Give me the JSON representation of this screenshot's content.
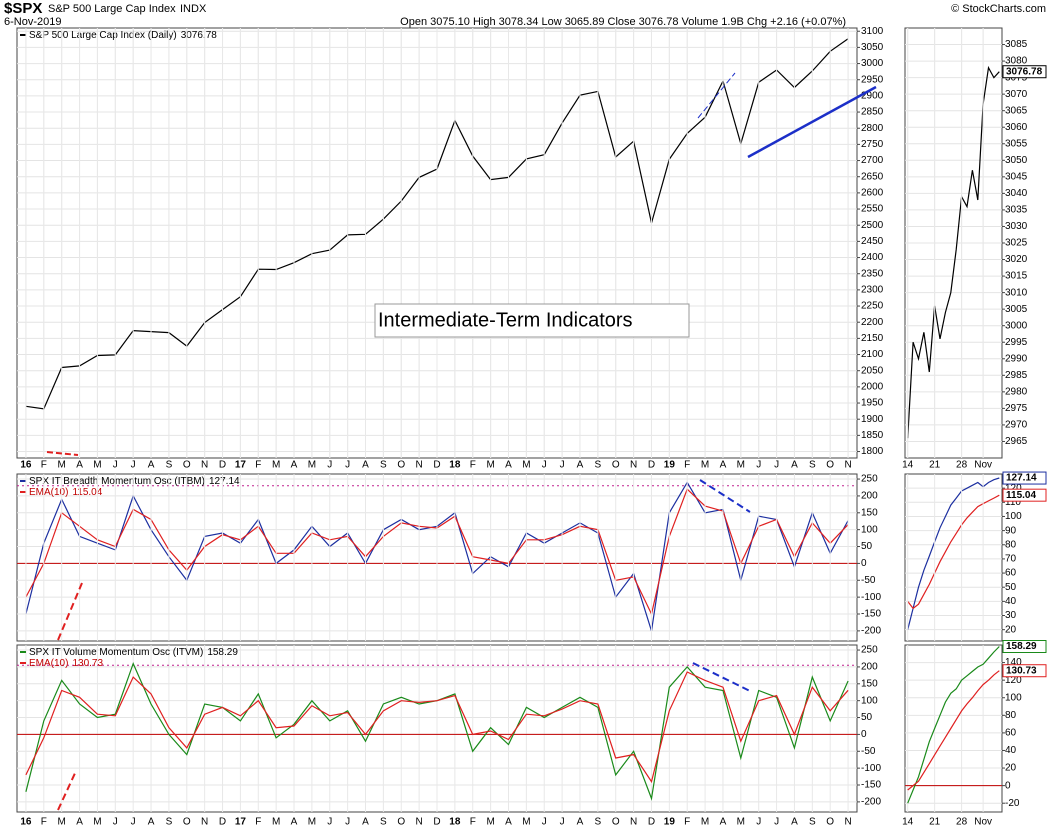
{
  "header": {
    "symbol": "$SPX",
    "name": "S&P 500 Large Cap Index",
    "exchange": "INDX",
    "date": "6-Nov-2019",
    "quote": "Open 3075.10   High 3078.34   Low 3065.89   Close 3076.78   Volume 1.9B   Chg +2.16 (+0.07%)",
    "copyright": "© StockCharts.com",
    "annotation": "Intermediate-Term Indicators"
  },
  "chart_data": [
    {
      "type": "line",
      "categories": [
        "16",
        "F",
        "M",
        "A",
        "M",
        "J",
        "J",
        "A",
        "S",
        "O",
        "N",
        "D",
        "17",
        "F",
        "M",
        "A",
        "M",
        "J",
        "J",
        "A",
        "S",
        "O",
        "N",
        "D",
        "18",
        "F",
        "M",
        "A",
        "M",
        "J",
        "J",
        "A",
        "S",
        "O",
        "N",
        "D",
        "19",
        "F",
        "M",
        "A",
        "M",
        "J",
        "J",
        "A",
        "S",
        "O",
        "N"
      ],
      "series": [
        {
          "name": "S&P 500 Large Cap Index (Daily)",
          "color": "#000000",
          "values": [
            1940,
            1932,
            2060,
            2065,
            2097,
            2099,
            2174,
            2171,
            2168,
            2126,
            2199,
            2239,
            2279,
            2364,
            2363,
            2384,
            2412,
            2423,
            2470,
            2472,
            2519,
            2575,
            2648,
            2674,
            2824,
            2714,
            2641,
            2648,
            2705,
            2718,
            2816,
            2902,
            2914,
            2711,
            2760,
            2507,
            2704,
            2784,
            2834,
            2946,
            2752,
            2942,
            2980,
            2926,
            2977,
            3038,
            3076.78
          ]
        }
      ],
      "ylim": [
        1780,
        3110
      ],
      "yticks": [
        1800,
        1850,
        1900,
        1950,
        2000,
        2050,
        2100,
        2150,
        2200,
        2250,
        2300,
        2350,
        2400,
        2450,
        2500,
        2550,
        2600,
        2650,
        2700,
        2750,
        2800,
        2850,
        2900,
        2950,
        3000,
        3050,
        3100
      ],
      "grid": true
    },
    {
      "type": "line",
      "series": [
        {
          "name": "SPX IT Breadth Momentum Osc (ITBM)",
          "color": "#1c2fa0",
          "values": [
            -150,
            60,
            190,
            80,
            60,
            40,
            200,
            100,
            20,
            -50,
            80,
            90,
            60,
            130,
            0,
            40,
            110,
            50,
            90,
            0,
            100,
            130,
            100,
            110,
            150,
            -30,
            20,
            -10,
            90,
            60,
            90,
            120,
            90,
            -100,
            -30,
            -200,
            150,
            240,
            150,
            160,
            -50,
            140,
            130,
            -10,
            150,
            30,
            127.14
          ]
        },
        {
          "name": "EMA(10)",
          "color": "#e02020",
          "values": [
            -100,
            0,
            150,
            110,
            70,
            50,
            160,
            130,
            40,
            -20,
            50,
            85,
            70,
            110,
            30,
            30,
            90,
            70,
            80,
            20,
            80,
            120,
            110,
            105,
            140,
            20,
            10,
            0,
            70,
            70,
            85,
            110,
            100,
            -50,
            -40,
            -150,
            80,
            220,
            170,
            155,
            0,
            110,
            130,
            20,
            120,
            60,
            115.04
          ]
        }
      ],
      "ylim": [
        -230,
        265
      ],
      "yticks": [
        -200,
        -150,
        -100,
        -50,
        0,
        50,
        100,
        150,
        200,
        250
      ],
      "grid": true,
      "hlines": [
        {
          "value": 0,
          "color": "#c00000",
          "style": "solid"
        },
        {
          "value": 230,
          "color": "#c0208f",
          "style": "dotted"
        }
      ]
    },
    {
      "type": "line",
      "categories": [
        "16",
        "F",
        "M",
        "A",
        "M",
        "J",
        "J",
        "A",
        "S",
        "O",
        "N",
        "D",
        "17",
        "F",
        "M",
        "A",
        "M",
        "J",
        "J",
        "A",
        "S",
        "O",
        "N",
        "D",
        "18",
        "F",
        "M",
        "A",
        "M",
        "J",
        "J",
        "A",
        "S",
        "O",
        "N",
        "D",
        "19",
        "F",
        "M",
        "A",
        "M",
        "J",
        "J",
        "A",
        "S",
        "O",
        "N"
      ],
      "series": [
        {
          "name": "SPX IT Volume Momentum Osc (ITVM)",
          "color": "#1a8a1a",
          "values": [
            -170,
            40,
            160,
            90,
            50,
            60,
            210,
            90,
            0,
            -60,
            90,
            80,
            40,
            120,
            -10,
            30,
            100,
            40,
            70,
            -20,
            90,
            110,
            90,
            100,
            120,
            -50,
            20,
            -30,
            80,
            50,
            80,
            110,
            80,
            -120,
            -50,
            -190,
            140,
            200,
            140,
            130,
            -70,
            130,
            110,
            -40,
            170,
            40,
            158.29
          ]
        },
        {
          "name": "EMA(10)",
          "color": "#e02020",
          "values": [
            -120,
            -10,
            130,
            110,
            60,
            55,
            170,
            120,
            20,
            -40,
            60,
            80,
            55,
            100,
            20,
            25,
            85,
            55,
            65,
            0,
            70,
            100,
            95,
            100,
            115,
            0,
            10,
            -15,
            60,
            55,
            75,
            100,
            90,
            -70,
            -60,
            -140,
            70,
            185,
            160,
            140,
            -20,
            100,
            115,
            0,
            140,
            70,
            130.73
          ]
        }
      ],
      "ylim": [
        -230,
        265
      ],
      "yticks": [
        -200,
        -150,
        -100,
        -50,
        0,
        50,
        100,
        150,
        200,
        250
      ],
      "grid": true,
      "hlines": [
        {
          "value": 0,
          "color": "#c00000",
          "style": "solid"
        },
        {
          "value": 205,
          "color": "#c0208f",
          "style": "dotted"
        }
      ]
    },
    {
      "type": "line",
      "categories": [
        "14",
        null,
        null,
        null,
        null,
        "21",
        null,
        null,
        null,
        null,
        "28",
        null,
        null,
        null,
        "Nov",
        null,
        null,
        null
      ],
      "series": [
        {
          "color": "#000000",
          "values": [
            2966,
            2995,
            2990,
            2998,
            2986,
            3006,
            2996,
            3004,
            3010,
            3023,
            3039,
            3036,
            3047,
            3038,
            3067,
            3078,
            3075,
            3076.78
          ]
        }
      ],
      "ylim": [
        2960,
        3090
      ],
      "yticks": [
        2965,
        2970,
        2975,
        2980,
        2985,
        2990,
        2995,
        3000,
        3005,
        3010,
        3015,
        3020,
        3025,
        3030,
        3035,
        3040,
        3045,
        3050,
        3055,
        3060,
        3065,
        3070,
        3075,
        3080,
        3085
      ],
      "grid": true
    },
    {
      "type": "line",
      "series": [
        {
          "color": "#1c2fa0",
          "values": [
            20,
            35,
            50,
            62,
            72,
            82,
            92,
            100,
            108,
            113,
            118,
            120,
            122,
            124,
            121,
            124,
            126,
            127.14
          ]
        },
        {
          "color": "#e02020",
          "values": [
            40,
            35,
            38,
            45,
            52,
            60,
            68,
            75,
            82,
            88,
            94,
            99,
            103,
            107,
            109,
            111,
            113,
            115.04
          ]
        }
      ],
      "ylim": [
        12,
        130
      ],
      "yticks": [
        20,
        30,
        40,
        50,
        60,
        70,
        80,
        90,
        100,
        110,
        120
      ],
      "grid": true
    },
    {
      "type": "line",
      "categories": [
        "14",
        null,
        null,
        null,
        null,
        "21",
        null,
        null,
        null,
        null,
        "28",
        null,
        null,
        null,
        "Nov",
        null,
        null,
        null
      ],
      "series": [
        {
          "color": "#1a8a1a",
          "values": [
            -20,
            -5,
            10,
            30,
            50,
            65,
            80,
            95,
            105,
            110,
            120,
            125,
            130,
            135,
            138,
            145,
            152,
            158.29
          ]
        },
        {
          "color": "#e02020",
          "values": [
            -5,
            0,
            5,
            15,
            25,
            35,
            45,
            55,
            65,
            75,
            85,
            93,
            100,
            108,
            115,
            120,
            126,
            130.73
          ]
        }
      ],
      "ylim": [
        -30,
        160
      ],
      "yticks": [
        -20,
        0,
        20,
        40,
        60,
        80,
        100,
        120,
        140
      ],
      "grid": true,
      "hlines": [
        {
          "value": 0,
          "color": "#c00000",
          "style": "solid"
        }
      ]
    }
  ]
}
